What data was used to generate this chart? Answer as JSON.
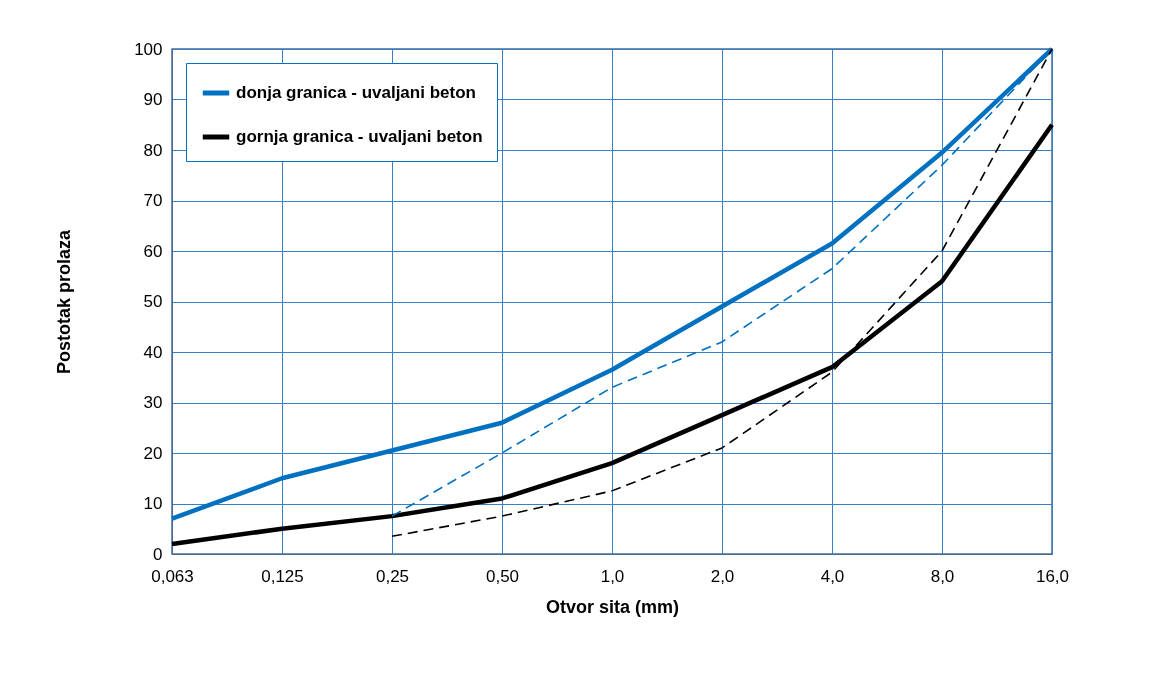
{
  "chart_data": {
    "type": "line",
    "xlabel": "Otvor sita (mm)",
    "ylabel": "Postotak prolaza",
    "categories": [
      "0,063",
      "0,125",
      "0,25",
      "0,50",
      "1,0",
      "2,0",
      "4,0",
      "8,0",
      "16,0"
    ],
    "series": [
      {
        "name": "donja granica - uvaljani beton",
        "color": "#0070c0",
        "line_style": "solid",
        "values": [
          7,
          15,
          20.5,
          26,
          36.5,
          49,
          61.5,
          79.5,
          100
        ]
      },
      {
        "name": "gornja granica - uvaljani beton",
        "color": "#000000",
        "line_style": "solid",
        "values": [
          2,
          5,
          7.5,
          11,
          18,
          27.5,
          37,
          54,
          85
        ]
      },
      {
        "color": "#0070c0",
        "line_style": "dashed",
        "values": [
          null,
          null,
          7.5,
          20,
          33,
          42,
          56.5,
          77,
          100
        ]
      },
      {
        "color": "#000000",
        "line_style": "dashed",
        "values": [
          null,
          null,
          3.5,
          7.5,
          12.5,
          21,
          36,
          60,
          100
        ]
      }
    ],
    "ylim": [
      0,
      100
    ],
    "yticks": [
      0,
      10,
      20,
      30,
      40,
      50,
      60,
      70,
      80,
      90,
      100
    ],
    "grid": true,
    "legend": "top left",
    "marker": "none"
  }
}
